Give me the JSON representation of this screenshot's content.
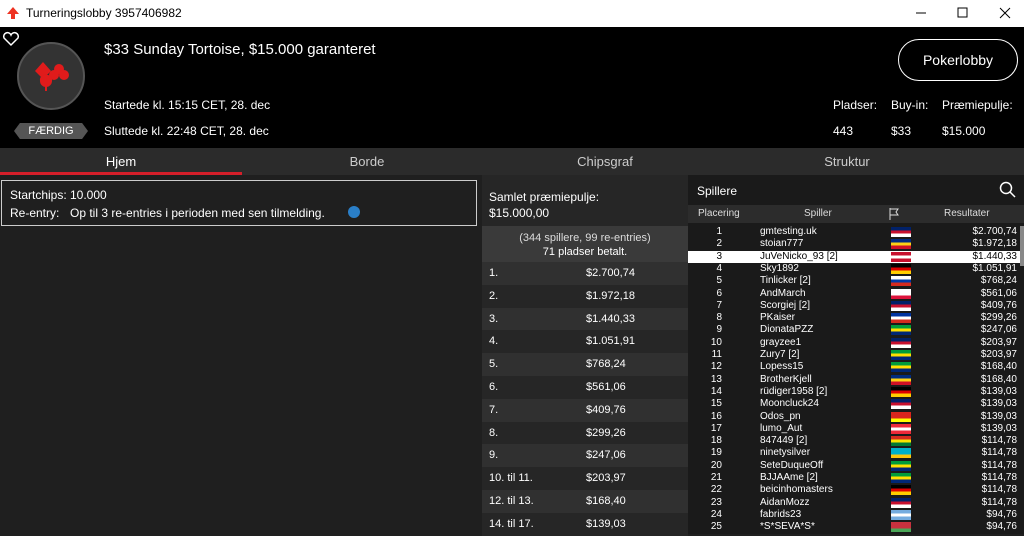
{
  "window": {
    "title": "Turneringslobby 3957406982"
  },
  "header": {
    "tournament_name": "$33 Sunday Tortoise, $15.000 garanteret",
    "started": "Startede kl. 15:15 CET, 28. dec",
    "ended": "Sluttede kl. 22:48 CET, 28. dec",
    "status": "FÆRDIG",
    "lobby_button": "Pokerlobby",
    "stats": [
      {
        "label": "Pladser:",
        "value": "443"
      },
      {
        "label": "Buy-in:",
        "value": "$33"
      },
      {
        "label": "Præmiepulje:",
        "value": "$15.000"
      }
    ]
  },
  "tabs": [
    "Hjem",
    "Borde",
    "Chipsgraf",
    "Struktur"
  ],
  "info": [
    {
      "label": "Startchips:",
      "value": "10.000"
    },
    {
      "label": "Re-entry:",
      "value": "Op til 3 re-entries i perioden med sen tilmelding."
    }
  ],
  "prizes": {
    "title": "Samlet præmiepulje:",
    "total": "$15.000,00",
    "summary": "(344 spillere, 99 re-entries)",
    "paid": "71 pladser betalt.",
    "rows": [
      [
        "1.",
        "$2.700,74"
      ],
      [
        "2.",
        "$1.972,18"
      ],
      [
        "3.",
        "$1.440,33"
      ],
      [
        "4.",
        "$1.051,91"
      ],
      [
        "5.",
        "$768,24"
      ],
      [
        "6.",
        "$561,06"
      ],
      [
        "7.",
        "$409,76"
      ],
      [
        "8.",
        "$299,26"
      ],
      [
        "9.",
        "$247,06"
      ],
      [
        "10. til 11.",
        "$203,97"
      ],
      [
        "12. til 13.",
        "$168,40"
      ],
      [
        "14. til 17.",
        "$139,03"
      ]
    ]
  },
  "players": {
    "title": "Spillere",
    "columns": [
      "Placering",
      "Spiller",
      "Resultater"
    ],
    "rows": [
      [
        "1",
        "gmtesting.uk",
        "$2.700,74"
      ],
      [
        "2",
        "stoian777",
        "$1.972,18"
      ],
      [
        "3",
        "JuVeNicko_93 [2]",
        "$1.440,33"
      ],
      [
        "4",
        "Sky1892",
        "$1.051,91"
      ],
      [
        "5",
        "Tinlicker [2]",
        "$768,24"
      ],
      [
        "6",
        "AndMarch",
        "$561,06"
      ],
      [
        "7",
        "Scorgiej [2]",
        "$409,76"
      ],
      [
        "8",
        "PKaiser",
        "$299,26"
      ],
      [
        "9",
        "DionataPZZ",
        "$247,06"
      ],
      [
        "10",
        "grayzee1",
        "$203,97"
      ],
      [
        "11",
        "Zury7 [2]",
        "$203,97"
      ],
      [
        "12",
        "Lopess15",
        "$168,40"
      ],
      [
        "13",
        "BrotherKjell",
        "$168,40"
      ],
      [
        "14",
        "rüdiger1958 [2]",
        "$139,03"
      ],
      [
        "15",
        "Mooncluck24",
        "$139,03"
      ],
      [
        "16",
        "Odos_pn",
        "$139,03"
      ],
      [
        "17",
        "lumo_Aut",
        "$139,03"
      ],
      [
        "18",
        "847449 [2]",
        "$114,78"
      ],
      [
        "19",
        "ninetysilver",
        "$114,78"
      ],
      [
        "20",
        "SeteDuqueOff",
        "$114,78"
      ],
      [
        "21",
        "BJJAAme [2]",
        "$114,78"
      ],
      [
        "22",
        "beicinhomasters",
        "$114,78"
      ],
      [
        "23",
        "AidanMozz",
        "$114,78"
      ],
      [
        "24",
        "fabrids23",
        "$94,76"
      ],
      [
        "25",
        "*S*SEVA*S*",
        "$94,76"
      ]
    ]
  }
}
